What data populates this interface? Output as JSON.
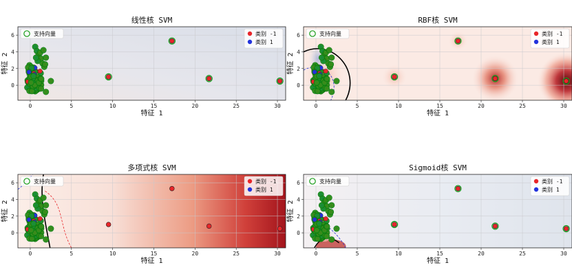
{
  "chart_data": [
    {
      "type": "scatter",
      "title": "线性核 SVM",
      "xlabel": "特征 1",
      "ylabel": "特征 2",
      "xlim": [
        -1.5,
        31
      ],
      "ylim": [
        -1.8,
        7.0
      ],
      "xticks": [
        0,
        5,
        10,
        15,
        20,
        25,
        30
      ],
      "yticks": [
        0,
        2,
        4,
        6
      ],
      "grid": true,
      "background": "linear",
      "legend_left": "支持向量",
      "legend_right": [
        "类别 -1",
        "类别 1"
      ],
      "outliers": [
        {
          "x": 9.5,
          "y": 1.0,
          "sv": true
        },
        {
          "x": 17.2,
          "y": 5.3,
          "sv": true
        },
        {
          "x": 21.7,
          "y": 0.8,
          "sv": true
        },
        {
          "x": 30.3,
          "y": 0.5,
          "sv": true
        }
      ]
    },
    {
      "type": "scatter",
      "title": "RBF核 SVM",
      "xlabel": "特征 1",
      "ylabel": "特征 2",
      "xlim": [
        -1.5,
        31
      ],
      "ylim": [
        -1.8,
        7.0
      ],
      "xticks": [
        0,
        5,
        10,
        15,
        20,
        25,
        30
      ],
      "yticks": [
        0,
        2,
        4,
        6
      ],
      "grid": true,
      "background": "rbf",
      "legend_left": "支持向量",
      "legend_right": [
        "类别 -1",
        "类别 1"
      ],
      "outliers": [
        {
          "x": 9.5,
          "y": 1.0,
          "sv": true
        },
        {
          "x": 17.2,
          "y": 5.3,
          "sv": true
        },
        {
          "x": 21.7,
          "y": 0.8,
          "sv": true
        },
        {
          "x": 30.3,
          "y": 0.5,
          "sv": true
        }
      ]
    },
    {
      "type": "scatter",
      "title": "多项式核 SVM",
      "xlabel": "特征 1",
      "ylabel": "特征 2",
      "xlim": [
        -1.5,
        31
      ],
      "ylim": [
        -1.8,
        7.0
      ],
      "xticks": [
        0,
        5,
        10,
        15,
        20,
        25,
        30
      ],
      "yticks": [
        0,
        2,
        4,
        6
      ],
      "grid": true,
      "background": "poly",
      "legend_left": "支持向量",
      "legend_right": [
        "类别 -1",
        "类别 1"
      ],
      "outliers": [
        {
          "x": 9.5,
          "y": 1.0,
          "sv": false
        },
        {
          "x": 17.2,
          "y": 5.3,
          "sv": false
        },
        {
          "x": 21.7,
          "y": 0.8,
          "sv": false
        },
        {
          "x": 30.3,
          "y": 0.5,
          "sv": false
        }
      ]
    },
    {
      "type": "scatter",
      "title": "Sigmoid核 SVM",
      "xlabel": "特征 1",
      "ylabel": "特征 2",
      "xlim": [
        -1.5,
        31
      ],
      "ylim": [
        -1.8,
        7.0
      ],
      "xticks": [
        0,
        5,
        10,
        15,
        20,
        25,
        30
      ],
      "yticks": [
        0,
        2,
        4,
        6
      ],
      "grid": true,
      "background": "sigmoid",
      "legend_left": "支持向量",
      "legend_right": [
        "类别 -1",
        "类别 1"
      ],
      "outliers": [
        {
          "x": 9.5,
          "y": 1.0,
          "sv": true
        },
        {
          "x": 17.2,
          "y": 5.3,
          "sv": true
        },
        {
          "x": 21.7,
          "y": 0.8,
          "sv": true
        },
        {
          "x": 30.3,
          "y": 0.5,
          "sv": true
        }
      ]
    }
  ],
  "colors": {
    "class_neg": "#e8262a",
    "class_pos": "#2233dd",
    "support_vector": "#1a9e1a",
    "boundary": "#000000",
    "margin": "#e8262a",
    "margin_rbf": "#2233dd"
  }
}
